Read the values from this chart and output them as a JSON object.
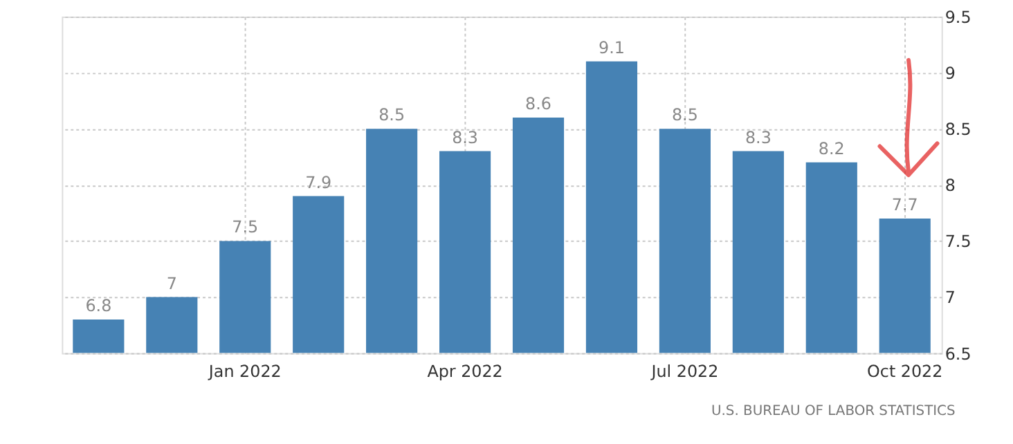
{
  "chart_data": {
    "type": "bar",
    "categories": [
      null,
      null,
      "Jan 2022",
      null,
      null,
      "Apr 2022",
      null,
      null,
      "Jul 2022",
      null,
      null,
      "Oct 2022"
    ],
    "values": [
      6.8,
      7,
      7.5,
      7.9,
      8.5,
      8.3,
      8.6,
      9.1,
      8.5,
      8.3,
      8.2,
      7.7
    ],
    "color": "#4682b4",
    "ylim": [
      6.5,
      9.5
    ],
    "yticks": [
      6.5,
      7,
      7.5,
      8,
      8.5,
      9,
      9.5
    ],
    "grid": true,
    "data_labels": true,
    "annotations": [
      "U.S. BUREAU OF LABOR STATISTICS"
    ]
  }
}
